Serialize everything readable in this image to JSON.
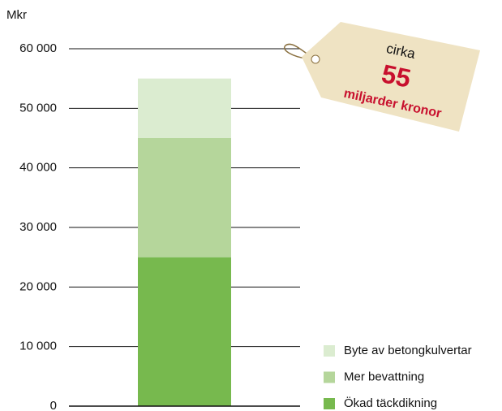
{
  "chart_data": {
    "type": "stacked_bar",
    "y_label": "Mkr",
    "categories": [
      null
    ],
    "series": [
      {
        "name": "Ökad täckdikning",
        "color": "#77b94e",
        "values": [
          25000
        ]
      },
      {
        "name": "Mer bevattning",
        "color": "#b5d69b",
        "values": [
          20000
        ]
      },
      {
        "name": "Byte av betongkulvertar",
        "color": "#dbecd0",
        "values": [
          10000
        ]
      }
    ],
    "ylim": [
      0,
      60000
    ],
    "yticks": [
      0,
      {
        "value": 10000,
        "label": "10 000"
      },
      {
        "value": 20000,
        "label": "20 000"
      },
      {
        "value": 30000,
        "label": "30 000"
      },
      {
        "value": 40000,
        "label": "40 000"
      },
      {
        "value": 50000,
        "label": "50 000"
      },
      {
        "value": 60000,
        "label": "60 000"
      }
    ],
    "grid": true,
    "annotations": [
      "cirka",
      "55",
      "miljarder kronor"
    ]
  }
}
